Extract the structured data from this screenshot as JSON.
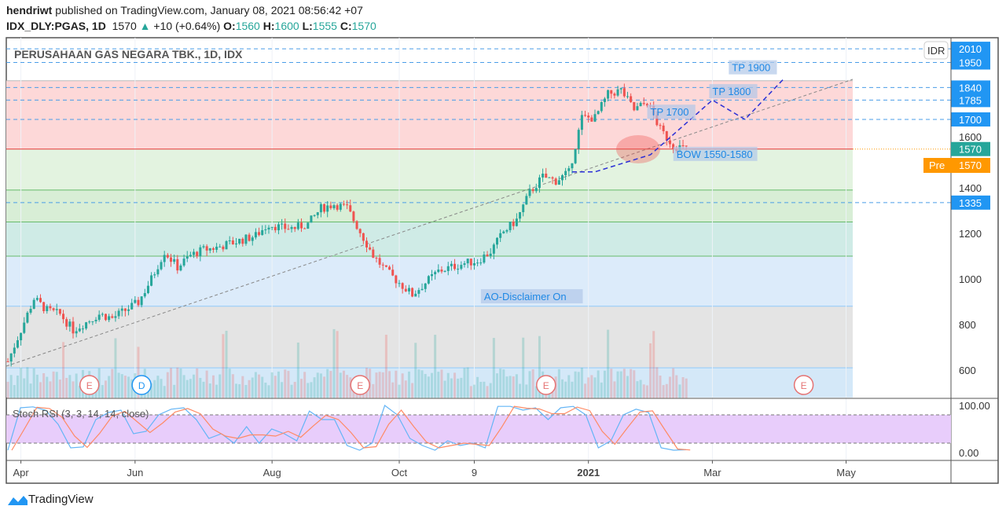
{
  "header": {
    "author": "hendriwt",
    "published": "published on TradingView.com, January 08, 2021 08:56:42 +07",
    "symbol": "IDX_DLY:PGAS, 1D",
    "last": "1570",
    "change": "+10 (+0.64%)",
    "o_label": "O:",
    "o": "1560",
    "h_label": "H:",
    "h": "1600",
    "l_label": "L:",
    "l": "1555",
    "c_label": "C:",
    "c": "1570"
  },
  "colors": {
    "up": "#26a69a",
    "down": "#ef5350",
    "accent": "#2196f3",
    "pre": "#ff9800"
  },
  "chart_data": {
    "type": "candlestick",
    "title": "PERUSAHAAN GAS NEGARA TBK., 1D, IDX",
    "currency": "IDR",
    "ylim": [
      500,
      2060
    ],
    "y_ticks": [
      "600",
      "800",
      "1000",
      "1200",
      "1400",
      "1600"
    ],
    "x_ticks": [
      {
        "label": "Apr",
        "i": 4
      },
      {
        "label": "Jun",
        "i": 39
      },
      {
        "label": "Aug",
        "i": 81
      },
      {
        "label": "Oct",
        "i": 120
      },
      {
        "label": "9",
        "i": 143
      },
      {
        "label": "2021",
        "i": 178
      },
      {
        "label": "Mar",
        "i": 216
      },
      {
        "label": "May",
        "i": 257
      }
    ],
    "price_path": [
      638,
      776,
      914,
      862,
      845,
      776,
      810,
      845,
      828,
      862,
      897,
      1000,
      1120,
      1052,
      1103,
      1128,
      1138,
      1155,
      1172,
      1190,
      1241,
      1224,
      1224,
      1241,
      1310,
      1328,
      1310,
      1207,
      1103,
      1034,
      983,
      931,
      983,
      1034,
      1052,
      1069,
      1080,
      1120,
      1207,
      1259,
      1379,
      1448,
      1431,
      1466,
      1707,
      1707,
      1810,
      1828,
      1741,
      1776,
      1655,
      1586,
      1570
    ],
    "levels": [
      {
        "label": "2010",
        "value": 2010
      },
      {
        "label": "1950",
        "value": 1950
      },
      {
        "label": "1840",
        "value": 1840
      },
      {
        "label": "1785",
        "value": 1785
      },
      {
        "label": "1700",
        "value": 1700
      },
      {
        "label": "1335",
        "value": 1335
      }
    ],
    "current": {
      "label": "1570",
      "value": 1570
    },
    "pre": {
      "tag": "Pre",
      "label": "1570"
    },
    "zones": [
      {
        "from": 1570,
        "to": 1870,
        "color": "#fdd8d8"
      },
      {
        "from": 1390,
        "to": 1570,
        "color": "#e3f3e0"
      },
      {
        "from": 1250,
        "to": 1390,
        "color": "#d8eed6"
      },
      {
        "from": 1100,
        "to": 1250,
        "color": "#cfebe6"
      },
      {
        "from": 880,
        "to": 1100,
        "color": "#dcebfa"
      },
      {
        "from": 610,
        "to": 880,
        "color": "#e4e4e4"
      },
      {
        "from": 480,
        "to": 610,
        "color": "#d4e8f8"
      }
    ],
    "annotations": [
      {
        "text": "TP 1900",
        "price": 1915,
        "i": 222
      },
      {
        "text": "TP 1800",
        "price": 1810,
        "i": 216
      },
      {
        "text": "TP 1700",
        "price": 1720,
        "i": 197
      },
      {
        "text": "BOW 1550-1580",
        "price": 1535,
        "i": 205
      },
      {
        "text": "AO-Disclaimer On",
        "price": 910,
        "i": 146
      }
    ],
    "projection": [
      [
        173,
        1470
      ],
      [
        180,
        1470
      ],
      [
        197,
        1545
      ],
      [
        216,
        1785
      ],
      [
        226,
        1700
      ],
      [
        238,
        1880
      ]
    ],
    "events": [
      {
        "t": "E",
        "i": 25
      },
      {
        "t": "D",
        "i": 41
      },
      {
        "t": "E",
        "i": 108
      },
      {
        "t": "E",
        "i": 165
      },
      {
        "t": "E",
        "i": 244
      }
    ],
    "indicator": {
      "name": "Stoch RSI (3, 3, 14, 14, close)",
      "ticks": [
        "100.00",
        "0.00"
      ],
      "k": [
        5,
        95,
        97,
        90,
        60,
        10,
        12,
        70,
        85,
        90,
        40,
        45,
        80,
        92,
        95,
        70,
        30,
        40,
        20,
        55,
        20,
        50,
        40,
        25,
        88,
        70,
        70,
        15,
        5,
        20,
        100,
        80,
        30,
        15,
        5,
        25,
        15,
        20,
        10,
        98,
        98,
        90,
        95,
        70,
        95,
        98,
        80,
        10,
        25,
        80,
        92,
        85,
        10,
        5,
        6
      ]
    }
  },
  "footer": {
    "brand": "TradingView"
  }
}
